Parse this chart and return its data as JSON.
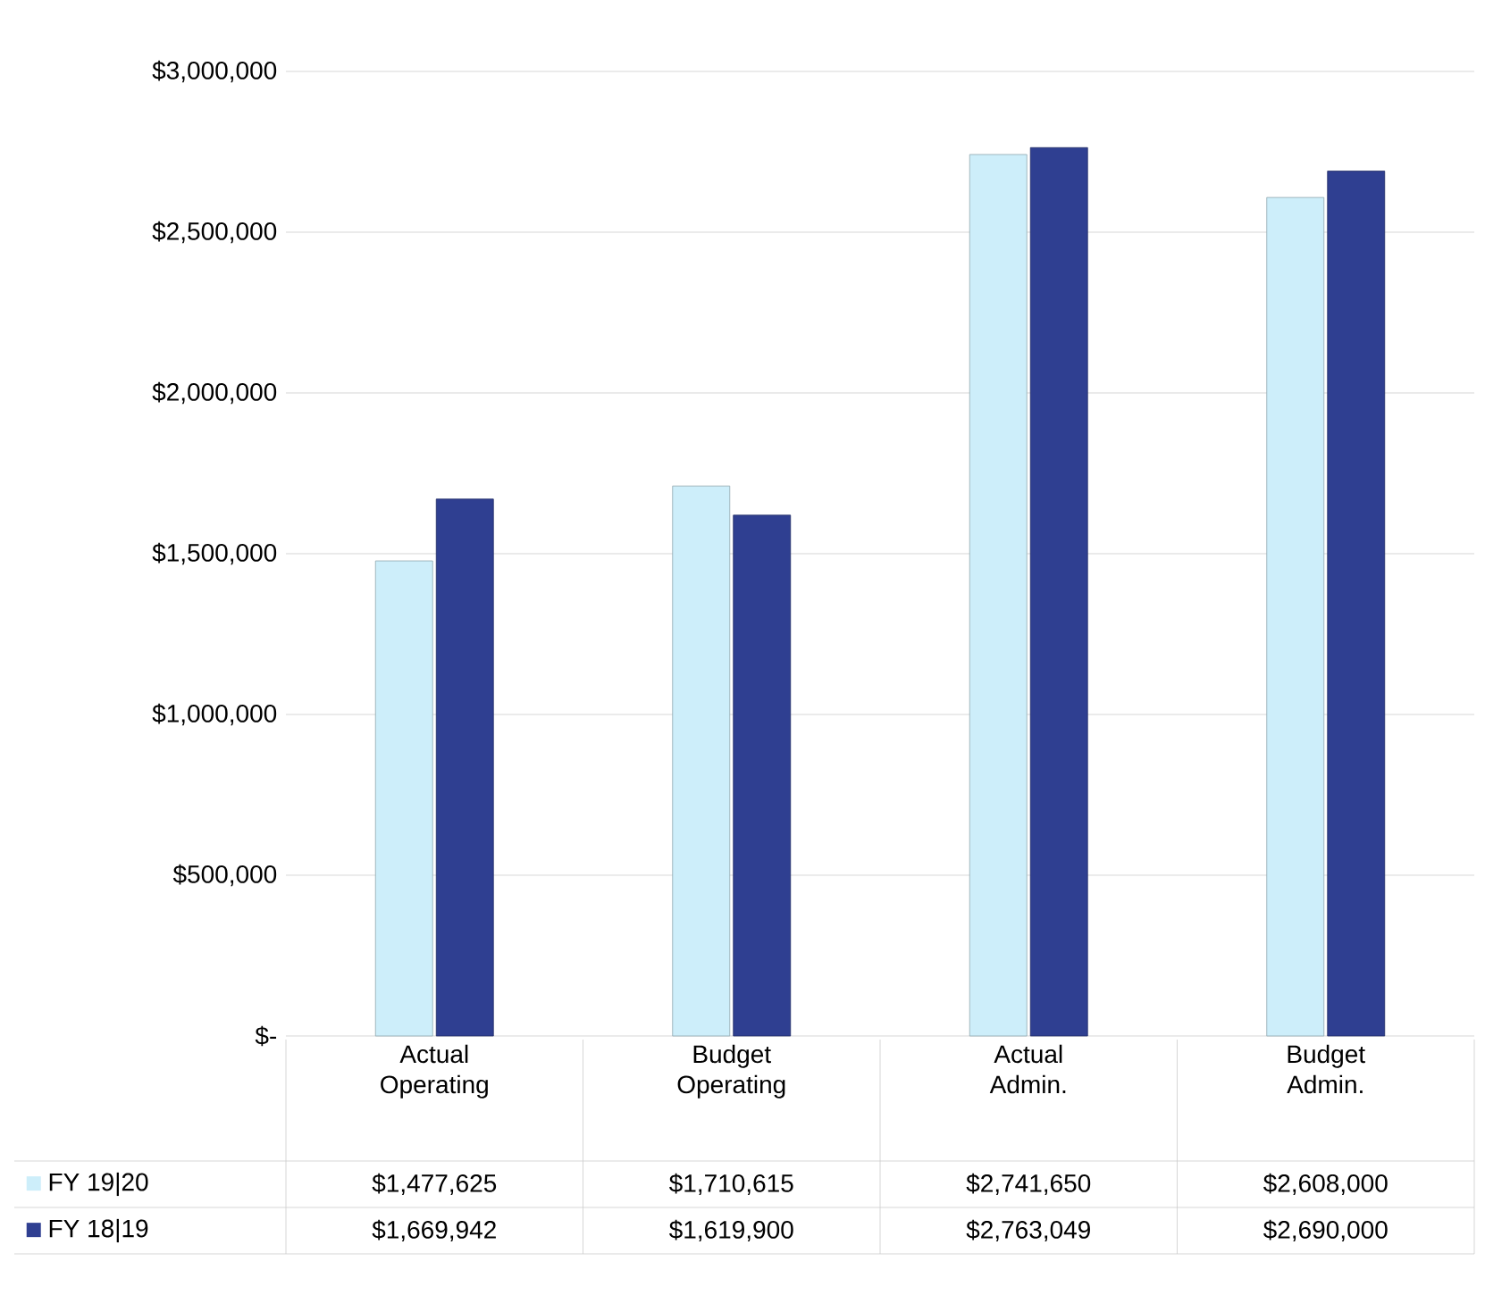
{
  "chart_data": {
    "type": "bar",
    "categories": [
      "Actual Operating",
      "Budget Operating",
      "Actual Admin.",
      "Budget Admin."
    ],
    "series": [
      {
        "name": "FY 19|20",
        "color": "#cdeefa",
        "values": [
          1477625,
          1710615,
          2741650,
          2608000
        ],
        "value_labels": [
          "$1,477,625",
          "$1,710,615",
          "$2,741,650",
          "$2,608,000"
        ]
      },
      {
        "name": "FY 18|19",
        "color": "#2f3f91",
        "values": [
          1669942,
          1619900,
          2763049,
          2690000
        ],
        "value_labels": [
          "$1,669,942",
          "$1,619,900",
          "$2,763,049",
          "$2,690,000"
        ]
      }
    ],
    "ylim": [
      0,
      3000000
    ],
    "yticks": [
      {
        "value": 0,
        "label": "$-"
      },
      {
        "value": 500000,
        "label": "$500,000"
      },
      {
        "value": 1000000,
        "label": "$1,000,000"
      },
      {
        "value": 1500000,
        "label": "$1,500,000"
      },
      {
        "value": 2000000,
        "label": "$2,000,000"
      },
      {
        "value": 2500000,
        "label": "$2,500,000"
      },
      {
        "value": 3000000,
        "label": "$3,000,000"
      }
    ],
    "grid": "y",
    "legend": "bottom"
  }
}
